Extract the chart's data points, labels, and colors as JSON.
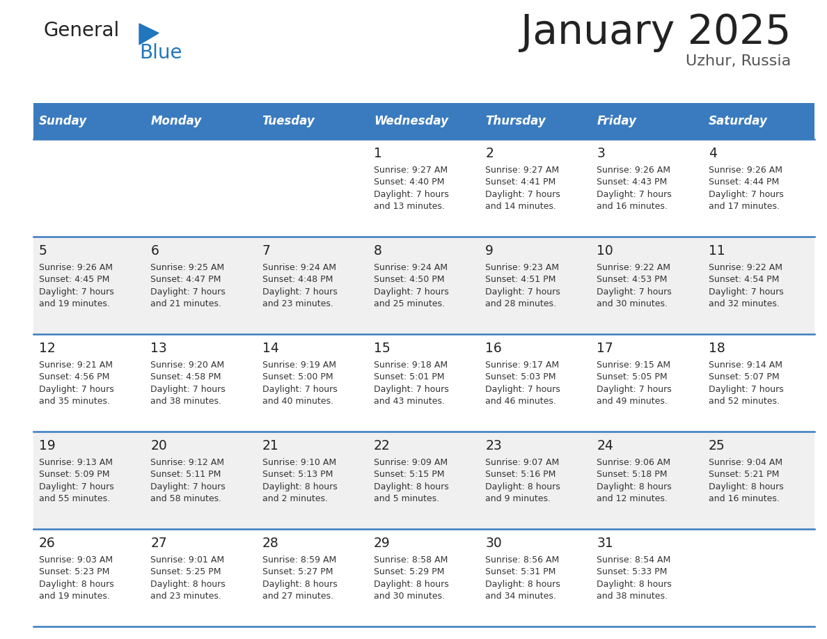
{
  "title": "January 2025",
  "subtitle": "Uzhur, Russia",
  "header_bg_color": "#3a7bbf",
  "header_text_color": "#ffffff",
  "days_of_week": [
    "Sunday",
    "Monday",
    "Tuesday",
    "Wednesday",
    "Thursday",
    "Friday",
    "Saturday"
  ],
  "bg_color": "#ffffff",
  "cell_bg_even": "#f0f0f0",
  "cell_bg_odd": "#ffffff",
  "day_number_color": "#222222",
  "text_color": "#333333",
  "separator_color": "#3a7bbf",
  "calendar": [
    [
      {
        "day": "",
        "info": ""
      },
      {
        "day": "",
        "info": ""
      },
      {
        "day": "",
        "info": ""
      },
      {
        "day": "1",
        "info": "Sunrise: 9:27 AM\nSunset: 4:40 PM\nDaylight: 7 hours\nand 13 minutes."
      },
      {
        "day": "2",
        "info": "Sunrise: 9:27 AM\nSunset: 4:41 PM\nDaylight: 7 hours\nand 14 minutes."
      },
      {
        "day": "3",
        "info": "Sunrise: 9:26 AM\nSunset: 4:43 PM\nDaylight: 7 hours\nand 16 minutes."
      },
      {
        "day": "4",
        "info": "Sunrise: 9:26 AM\nSunset: 4:44 PM\nDaylight: 7 hours\nand 17 minutes."
      }
    ],
    [
      {
        "day": "5",
        "info": "Sunrise: 9:26 AM\nSunset: 4:45 PM\nDaylight: 7 hours\nand 19 minutes."
      },
      {
        "day": "6",
        "info": "Sunrise: 9:25 AM\nSunset: 4:47 PM\nDaylight: 7 hours\nand 21 minutes."
      },
      {
        "day": "7",
        "info": "Sunrise: 9:24 AM\nSunset: 4:48 PM\nDaylight: 7 hours\nand 23 minutes."
      },
      {
        "day": "8",
        "info": "Sunrise: 9:24 AM\nSunset: 4:50 PM\nDaylight: 7 hours\nand 25 minutes."
      },
      {
        "day": "9",
        "info": "Sunrise: 9:23 AM\nSunset: 4:51 PM\nDaylight: 7 hours\nand 28 minutes."
      },
      {
        "day": "10",
        "info": "Sunrise: 9:22 AM\nSunset: 4:53 PM\nDaylight: 7 hours\nand 30 minutes."
      },
      {
        "day": "11",
        "info": "Sunrise: 9:22 AM\nSunset: 4:54 PM\nDaylight: 7 hours\nand 32 minutes."
      }
    ],
    [
      {
        "day": "12",
        "info": "Sunrise: 9:21 AM\nSunset: 4:56 PM\nDaylight: 7 hours\nand 35 minutes."
      },
      {
        "day": "13",
        "info": "Sunrise: 9:20 AM\nSunset: 4:58 PM\nDaylight: 7 hours\nand 38 minutes."
      },
      {
        "day": "14",
        "info": "Sunrise: 9:19 AM\nSunset: 5:00 PM\nDaylight: 7 hours\nand 40 minutes."
      },
      {
        "day": "15",
        "info": "Sunrise: 9:18 AM\nSunset: 5:01 PM\nDaylight: 7 hours\nand 43 minutes."
      },
      {
        "day": "16",
        "info": "Sunrise: 9:17 AM\nSunset: 5:03 PM\nDaylight: 7 hours\nand 46 minutes."
      },
      {
        "day": "17",
        "info": "Sunrise: 9:15 AM\nSunset: 5:05 PM\nDaylight: 7 hours\nand 49 minutes."
      },
      {
        "day": "18",
        "info": "Sunrise: 9:14 AM\nSunset: 5:07 PM\nDaylight: 7 hours\nand 52 minutes."
      }
    ],
    [
      {
        "day": "19",
        "info": "Sunrise: 9:13 AM\nSunset: 5:09 PM\nDaylight: 7 hours\nand 55 minutes."
      },
      {
        "day": "20",
        "info": "Sunrise: 9:12 AM\nSunset: 5:11 PM\nDaylight: 7 hours\nand 58 minutes."
      },
      {
        "day": "21",
        "info": "Sunrise: 9:10 AM\nSunset: 5:13 PM\nDaylight: 8 hours\nand 2 minutes."
      },
      {
        "day": "22",
        "info": "Sunrise: 9:09 AM\nSunset: 5:15 PM\nDaylight: 8 hours\nand 5 minutes."
      },
      {
        "day": "23",
        "info": "Sunrise: 9:07 AM\nSunset: 5:16 PM\nDaylight: 8 hours\nand 9 minutes."
      },
      {
        "day": "24",
        "info": "Sunrise: 9:06 AM\nSunset: 5:18 PM\nDaylight: 8 hours\nand 12 minutes."
      },
      {
        "day": "25",
        "info": "Sunrise: 9:04 AM\nSunset: 5:21 PM\nDaylight: 8 hours\nand 16 minutes."
      }
    ],
    [
      {
        "day": "26",
        "info": "Sunrise: 9:03 AM\nSunset: 5:23 PM\nDaylight: 8 hours\nand 19 minutes."
      },
      {
        "day": "27",
        "info": "Sunrise: 9:01 AM\nSunset: 5:25 PM\nDaylight: 8 hours\nand 23 minutes."
      },
      {
        "day": "28",
        "info": "Sunrise: 8:59 AM\nSunset: 5:27 PM\nDaylight: 8 hours\nand 27 minutes."
      },
      {
        "day": "29",
        "info": "Sunrise: 8:58 AM\nSunset: 5:29 PM\nDaylight: 8 hours\nand 30 minutes."
      },
      {
        "day": "30",
        "info": "Sunrise: 8:56 AM\nSunset: 5:31 PM\nDaylight: 8 hours\nand 34 minutes."
      },
      {
        "day": "31",
        "info": "Sunrise: 8:54 AM\nSunset: 5:33 PM\nDaylight: 8 hours\nand 38 minutes."
      },
      {
        "day": "",
        "info": ""
      }
    ]
  ],
  "logo_general_color": "#222222",
  "logo_blue_color": "#2176be",
  "logo_triangle_color": "#2176be",
  "title_color": "#222222",
  "subtitle_color": "#555555"
}
